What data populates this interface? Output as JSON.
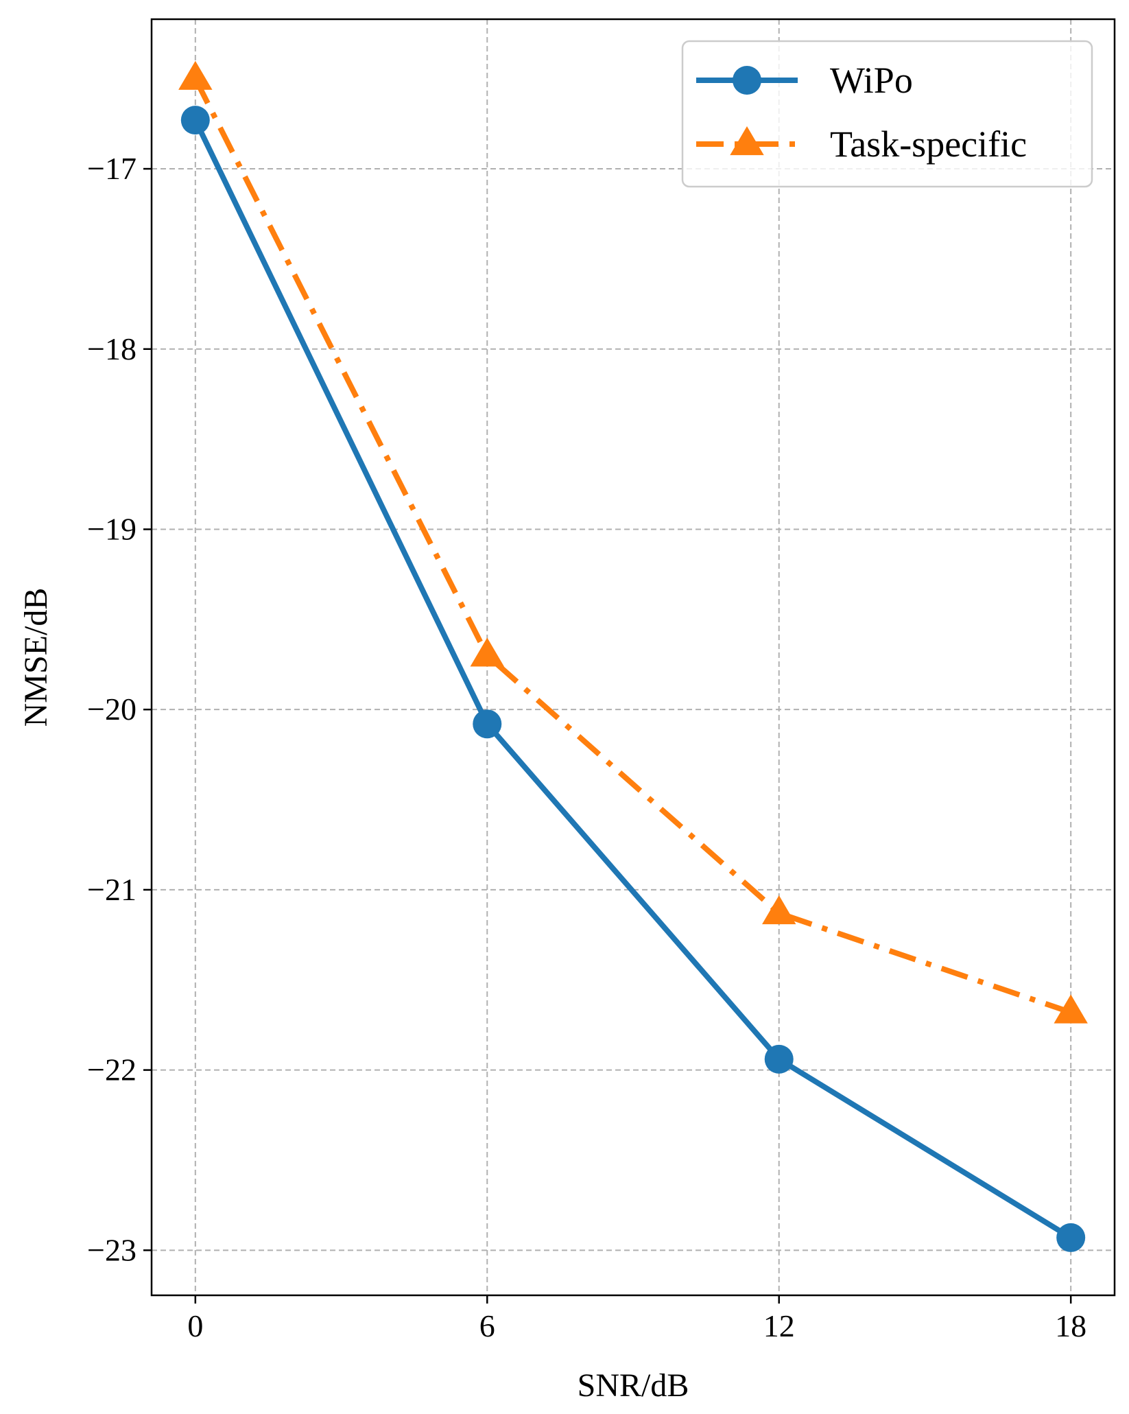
{
  "chart_data": {
    "type": "line",
    "title": "",
    "xlabel": "SNR/dB",
    "ylabel": "NMSE/dB",
    "x": [
      0,
      6,
      12,
      18
    ],
    "x_ticks": [
      0,
      6,
      12,
      18
    ],
    "x_tick_labels": [
      "0",
      "6",
      "12",
      "18"
    ],
    "y_ticks": [
      -17,
      -18,
      -19,
      -20,
      -21,
      -22,
      -23
    ],
    "y_tick_labels": [
      "−17",
      "−18",
      "−19",
      "−20",
      "−21",
      "−22",
      "−23"
    ],
    "xlim": [
      -0.9,
      18.9
    ],
    "ylim": [
      -23.25,
      -16.17
    ],
    "grid": true,
    "legend_position": "top-right",
    "series": [
      {
        "name": "WiPo",
        "values": [
          -16.73,
          -20.08,
          -21.94,
          -22.93
        ],
        "color": "#1f77b4",
        "marker": "circle",
        "line_style": "solid"
      },
      {
        "name": "Task-specific",
        "values": [
          -16.5,
          -19.7,
          -21.13,
          -21.68
        ],
        "color": "#ff7f0e",
        "marker": "triangle",
        "line_style": "dashdot"
      }
    ]
  }
}
